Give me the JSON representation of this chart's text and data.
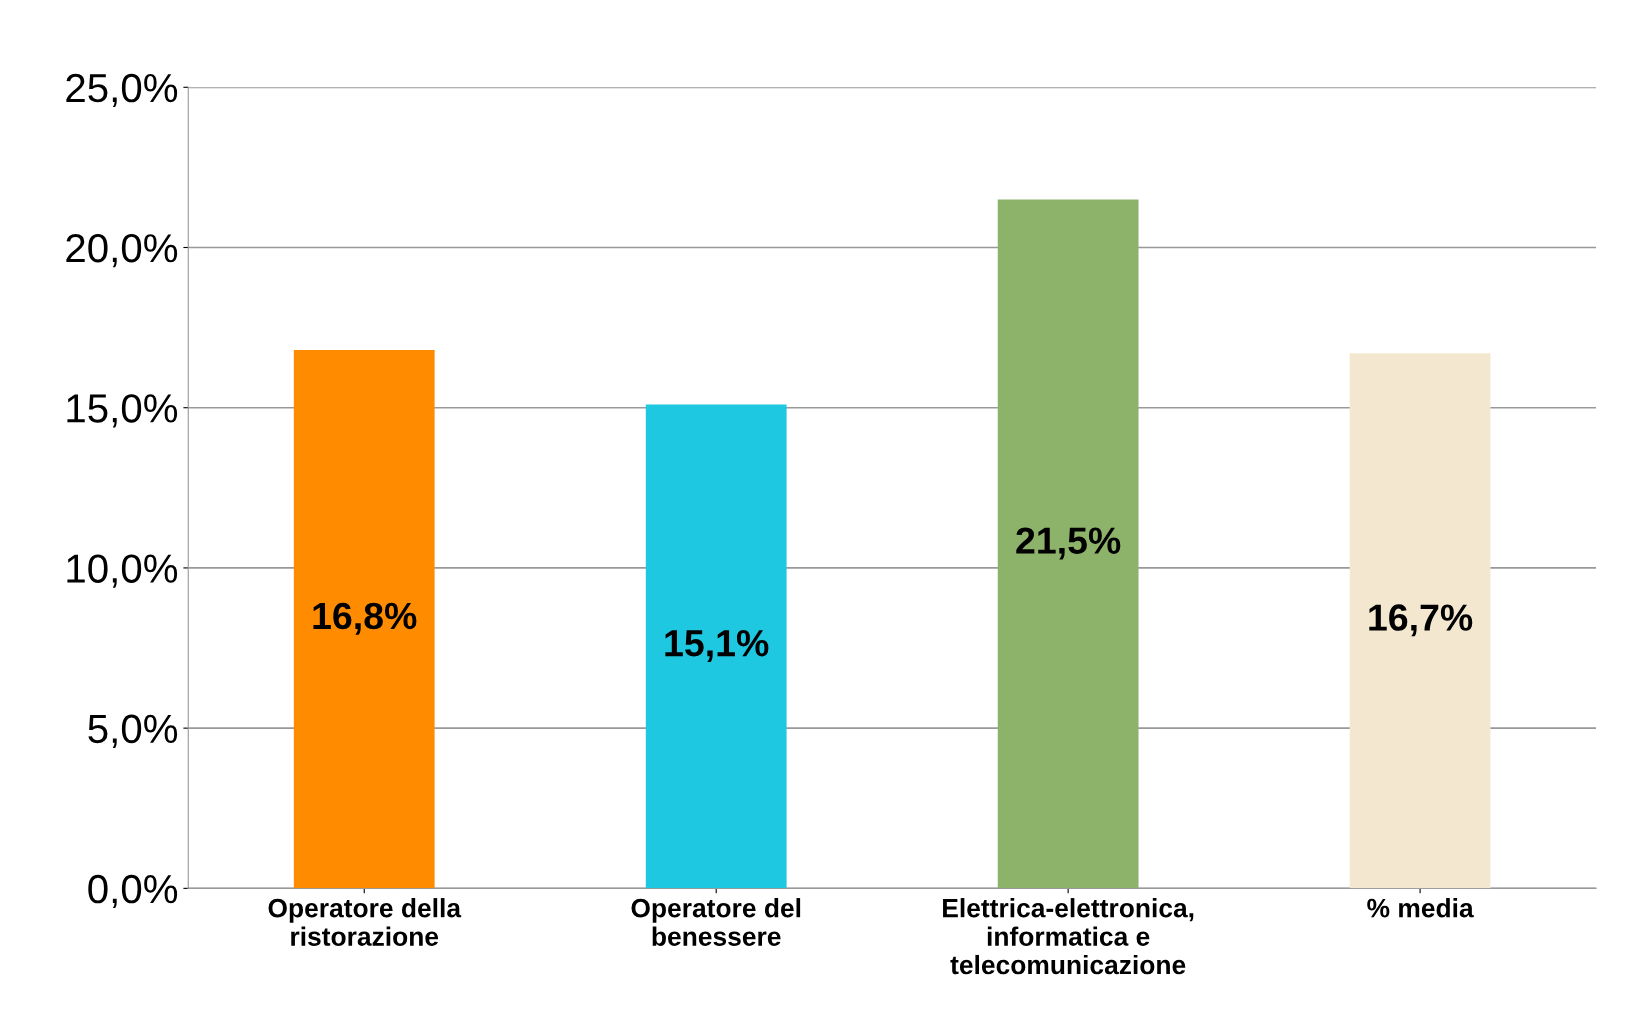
{
  "chart_data": {
    "type": "bar",
    "categories": [
      "Operatore della\nristorazione",
      "Operatore del\nbenessere",
      "Elettrica-elettronica,\ninformatica e\ntelecomunicazione",
      "% media"
    ],
    "values": [
      16.8,
      15.1,
      21.5,
      16.7
    ],
    "colors": [
      "#ff8c00",
      "#1ec8e0",
      "#8db36a",
      "#f3e8cf"
    ],
    "value_labels": [
      "16,8%",
      "15,1%",
      "21,5%",
      "16,7%"
    ],
    "ylim": [
      0,
      25
    ],
    "yticks": [
      {
        "value": 0,
        "label": "0,0%"
      },
      {
        "value": 5,
        "label": "5,0%"
      },
      {
        "value": 10,
        "label": "10,0%"
      },
      {
        "value": 15,
        "label": "15,0%"
      },
      {
        "value": 20,
        "label": "20,0%"
      },
      {
        "value": 25,
        "label": "25,0%"
      }
    ],
    "grid": "y"
  }
}
